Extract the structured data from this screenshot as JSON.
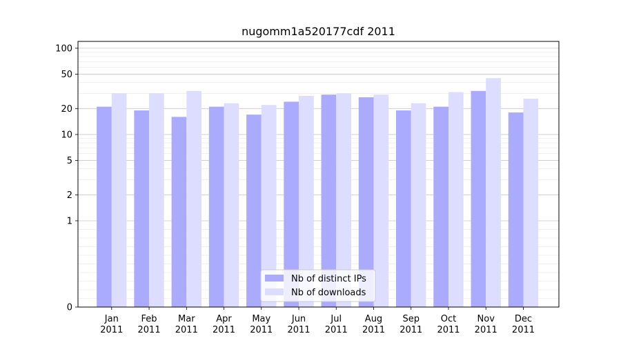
{
  "chart_data": {
    "type": "bar",
    "title": "nugomm1a520177cdf 2011",
    "xlabel": "",
    "ylabel": "",
    "yscale": "symlog",
    "ylim": [
      0,
      120
    ],
    "yticks": [
      0,
      1,
      2,
      5,
      10,
      20,
      50,
      100
    ],
    "grid": true,
    "legend_position": "lower-center",
    "categories": [
      "Jan\n2011",
      "Feb\n2011",
      "Mar\n2011",
      "Apr\n2011",
      "May\n2011",
      "Jun\n2011",
      "Jul\n2011",
      "Aug\n2011",
      "Sep\n2011",
      "Oct\n2011",
      "Nov\n2011",
      "Dec\n2011"
    ],
    "series": [
      {
        "name": "Nb of distinct IPs",
        "color": "#aaaaff",
        "values": [
          21,
          19,
          16,
          21,
          17,
          24,
          29,
          27,
          19,
          21,
          32,
          18
        ]
      },
      {
        "name": "Nb of downloads",
        "color": "#ddddff",
        "values": [
          30,
          30,
          32,
          23,
          22,
          28,
          30,
          29,
          23,
          31,
          45,
          26
        ]
      }
    ]
  }
}
